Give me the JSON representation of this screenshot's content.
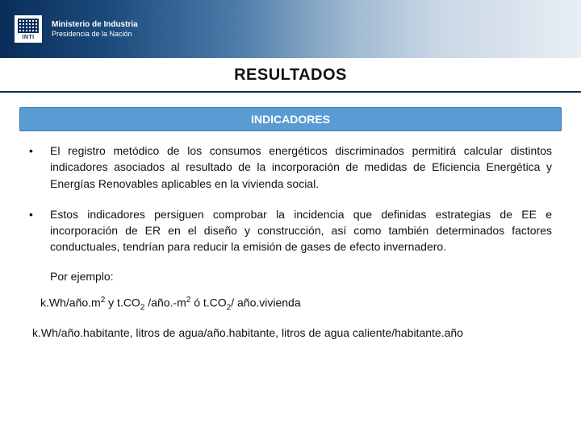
{
  "header": {
    "logo_label": "INTI",
    "ministry_line1": "Ministerio de Industria",
    "ministry_line2": "Presidencia de la Nación"
  },
  "title": "RESULTADOS",
  "section_header": "INDICADORES",
  "bullets": [
    "El registro metódico de los consumos energéticos discriminados permitirá calcular distintos indicadores asociados al resultado de la incorporación de medidas de Eficiencia Energética y Energías Renovables aplicables en la vivienda social.",
    "Estos indicadores persiguen comprobar la incidencia que definidas estrategias de EE e incorporación de ER en el diseño y construcción, así como también determinados factores conductuales, tendrían para reducir la emisión de gases de efecto invernadero."
  ],
  "example_label": "Por ejemplo:",
  "formula1_parts": {
    "a": "k.Wh/año.m",
    "a_sup": "2",
    "mid": "  y  t.CO",
    "sub1": "2",
    "b": " /año.-m",
    "b_sup": "2",
    "c": "  ó  t.CO",
    "sub2": "2",
    "d": "/ año.vivienda"
  },
  "formula2": "k.Wh/año.habitante, litros de agua/año.habitante, litros de agua caliente/habitante.año",
  "colors": {
    "dark_blue": "#0a2d5a",
    "section_blue": "#5a9bd4",
    "section_border": "#3a7ab4",
    "text": "#111111",
    "white": "#ffffff"
  }
}
